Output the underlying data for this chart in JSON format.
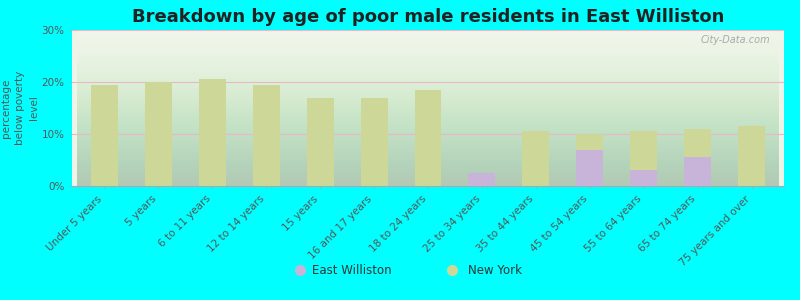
{
  "title": "Breakdown by age of poor male residents in East Williston",
  "categories": [
    "Under 5 years",
    "5 years",
    "6 to 11 years",
    "12 to 14 years",
    "15 years",
    "16 and 17 years",
    "18 to 24 years",
    "25 to 34 years",
    "35 to 44 years",
    "45 to 54 years",
    "55 to 64 years",
    "65 to 74 years",
    "75 years and over"
  ],
  "east_williston": [
    0,
    0,
    0,
    0,
    0,
    0,
    0,
    2.5,
    0,
    7.0,
    3.0,
    5.5,
    0
  ],
  "new_york": [
    19.5,
    20.0,
    20.5,
    19.5,
    17.0,
    17.0,
    18.5,
    0,
    10.5,
    10.0,
    10.5,
    11.0,
    11.5
  ],
  "bar_color_ew": "#c9b4d9",
  "bar_color_ny": "#cdd898",
  "background_color": "#00ffff",
  "ylabel": "percentage\nbelow poverty\nlevel",
  "ylim": [
    0,
    30
  ],
  "yticks": [
    0,
    10,
    20,
    30
  ],
  "ytick_labels": [
    "0%",
    "10%",
    "20%",
    "30%"
  ],
  "legend_ew": "East Williston",
  "legend_ny": "New York",
  "title_fontsize": 13,
  "axis_label_fontsize": 7.5,
  "tick_fontsize": 7.5,
  "watermark": "City-Data.com",
  "bar_width": 0.5,
  "plot_area_color_top": "#f0f5ee",
  "plot_area_color_bottom": "#dde8c0",
  "grid_color": "#e8b8c8",
  "grid_linewidth": 0.8
}
